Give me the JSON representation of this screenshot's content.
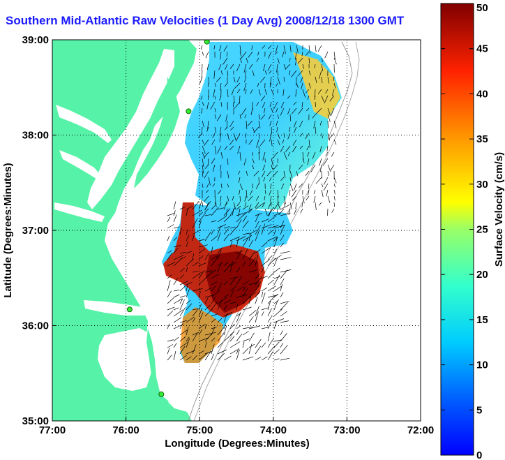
{
  "title": "Southern Mid-Atlantic Raw Velocities (1 Day Avg) 2008/12/18 1300 GMT",
  "map": {
    "xlabel": "Longitude (Degrees:Minutes)",
    "ylabel": "Latitude (Degrees:Minutes)",
    "x_ticks": [
      "77:00",
      "76:00",
      "75:00",
      "74:00",
      "73:00",
      "72:00"
    ],
    "y_ticks": [
      "39:00",
      "38:00",
      "37:00",
      "36:00",
      "35:00"
    ],
    "lon_range": [
      -77,
      -72
    ],
    "lat_range": [
      35,
      39
    ],
    "land_color": "#55f2a8",
    "grid": "dotted"
  },
  "colorbar": {
    "label": "Surface Velocity (cm/s)",
    "ticks": [
      "50",
      "45",
      "40",
      "35",
      "30",
      "25",
      "20",
      "15",
      "10",
      "5",
      "0"
    ],
    "range": [
      0,
      50
    ],
    "colormap": "jet"
  },
  "stations": [
    {
      "lon": -74.9,
      "lat": 38.98
    },
    {
      "lon": -75.15,
      "lat": 38.25
    },
    {
      "lon": -75.95,
      "lat": 36.17
    },
    {
      "lon": -75.52,
      "lat": 35.28
    }
  ]
}
